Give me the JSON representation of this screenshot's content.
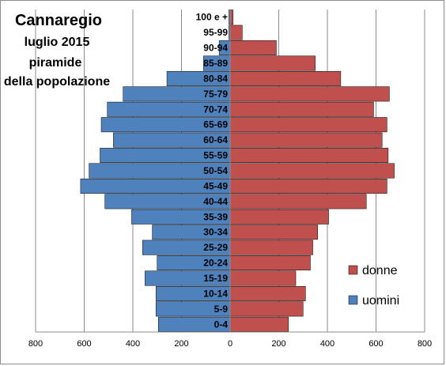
{
  "chart_data": {
    "type": "bar",
    "orientation": "horizontal",
    "title_lines": [
      "Cannaregio",
      "luglio 2015",
      "piramide",
      "della popolazione"
    ],
    "categories": [
      "0-4",
      "5-9",
      "10-14",
      "15-19",
      "20-24",
      "25-29",
      "30-34",
      "35-39",
      "40-44",
      "45-49",
      "50-54",
      "55-59",
      "60-64",
      "65-69",
      "70-74",
      "75-79",
      "80-84",
      "85-89",
      "90-94",
      "95-99",
      "100 e +"
    ],
    "series": [
      {
        "name": "donne",
        "color": "#c0504d",
        "values": [
          240,
          300,
          310,
          270,
          330,
          340,
          360,
          405,
          560,
          645,
          675,
          650,
          625,
          645,
          590,
          655,
          455,
          350,
          190,
          50,
          12
        ]
      },
      {
        "name": "uomini",
        "color": "#4f81bd",
        "values": [
          295,
          305,
          305,
          350,
          300,
          360,
          320,
          405,
          515,
          615,
          580,
          535,
          480,
          530,
          505,
          440,
          260,
          110,
          45,
          5,
          5
        ]
      }
    ],
    "xlim": [
      -800,
      800
    ],
    "x_ticks": [
      "800",
      "600",
      "400",
      "200",
      "0",
      "200",
      "400",
      "600",
      "800"
    ],
    "x_tick_values": [
      -800,
      -600,
      -400,
      -200,
      0,
      200,
      400,
      600,
      800
    ],
    "grid": true,
    "legend_position": "right"
  }
}
